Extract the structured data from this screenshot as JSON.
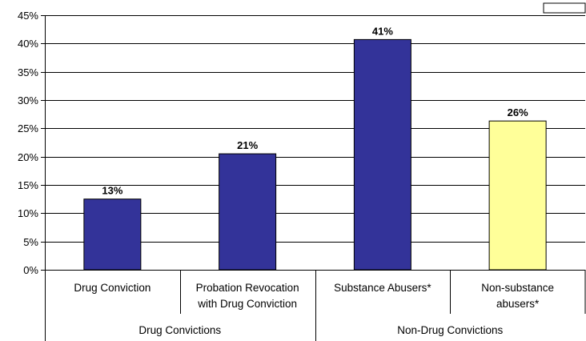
{
  "chart_data": {
    "type": "bar",
    "title": "",
    "xlabel": "",
    "ylabel": "",
    "ylim": [
      0,
      45
    ],
    "y_ticks": [
      "0%",
      "5%",
      "10%",
      "15%",
      "20%",
      "25%",
      "30%",
      "35%",
      "40%",
      "45%"
    ],
    "grid": true,
    "categories": [
      [
        "Drug Conviction"
      ],
      [
        "Probation Revocation",
        "with Drug Conviction"
      ],
      [
        "Substance Abusers*"
      ],
      [
        "Non-substance",
        "abusers*"
      ]
    ],
    "values": [
      12.5,
      20.5,
      40.7,
      26.3
    ],
    "data_labels": [
      "13%",
      "21%",
      "41%",
      "26%"
    ],
    "bar_colors": [
      "#333399",
      "#333399",
      "#333399",
      "#FFFF99"
    ],
    "groups": [
      {
        "label": "Drug Convictions",
        "categories": [
          0,
          1
        ]
      },
      {
        "label": "Non-Drug Convictions",
        "categories": [
          2,
          3
        ]
      }
    ]
  }
}
